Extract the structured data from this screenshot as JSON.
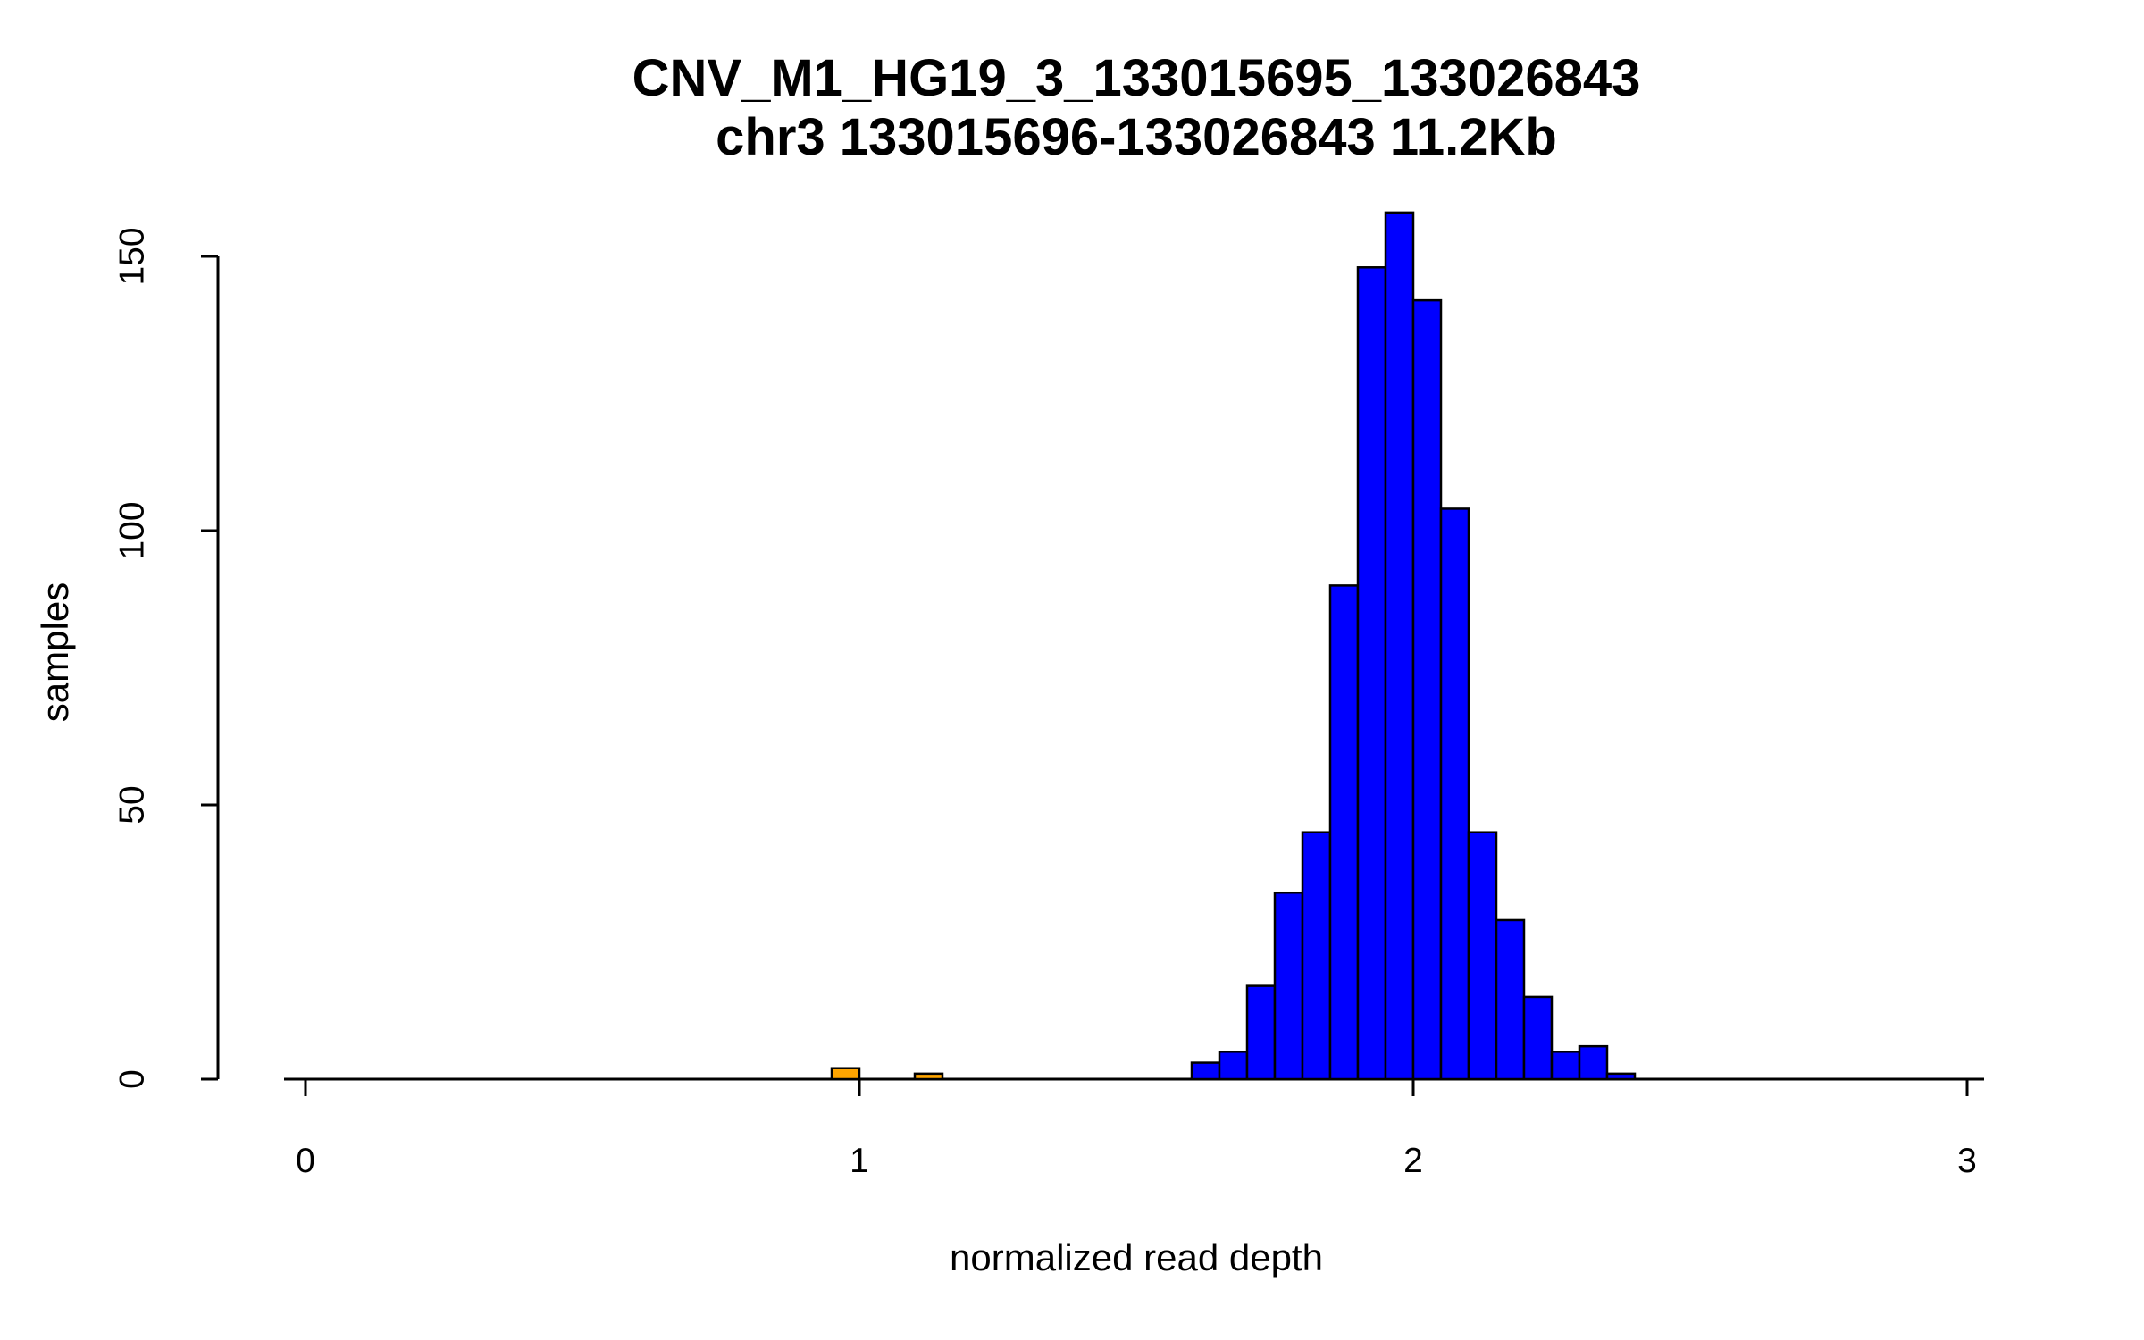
{
  "chart_data": {
    "type": "bar",
    "title": "CNV_M1_HG19_3_133015695_133026843",
    "subtitle": "chr3 133015696-133026843 11.2Kb",
    "xlabel": "normalized read depth",
    "ylabel": "samples",
    "xlim": [
      0,
      3
    ],
    "ylim": [
      0,
      158
    ],
    "x_ticks": [
      0,
      1,
      2,
      3
    ],
    "y_ticks": [
      0,
      50,
      100,
      150
    ],
    "grid": false,
    "legend": "none",
    "bin_width": 0.05,
    "bar_border_color": "#000000",
    "axis_color": "#000000",
    "series": [
      {
        "name": "orange_bars",
        "color": "#FFA500",
        "bins": [
          {
            "x": 0.95,
            "count": 2
          },
          {
            "x": 1.1,
            "count": 1
          }
        ]
      },
      {
        "name": "blue_bars",
        "color": "#0000FF",
        "bins": [
          {
            "x": 1.6,
            "count": 3
          },
          {
            "x": 1.65,
            "count": 5
          },
          {
            "x": 1.7,
            "count": 17
          },
          {
            "x": 1.75,
            "count": 34
          },
          {
            "x": 1.8,
            "count": 45
          },
          {
            "x": 1.85,
            "count": 90
          },
          {
            "x": 1.9,
            "count": 148
          },
          {
            "x": 1.95,
            "count": 158
          },
          {
            "x": 2.0,
            "count": 142
          },
          {
            "x": 2.05,
            "count": 104
          },
          {
            "x": 2.1,
            "count": 45
          },
          {
            "x": 2.15,
            "count": 29
          },
          {
            "x": 2.2,
            "count": 15
          },
          {
            "x": 2.25,
            "count": 5
          },
          {
            "x": 2.3,
            "count": 6
          },
          {
            "x": 2.35,
            "count": 1
          }
        ]
      }
    ]
  }
}
